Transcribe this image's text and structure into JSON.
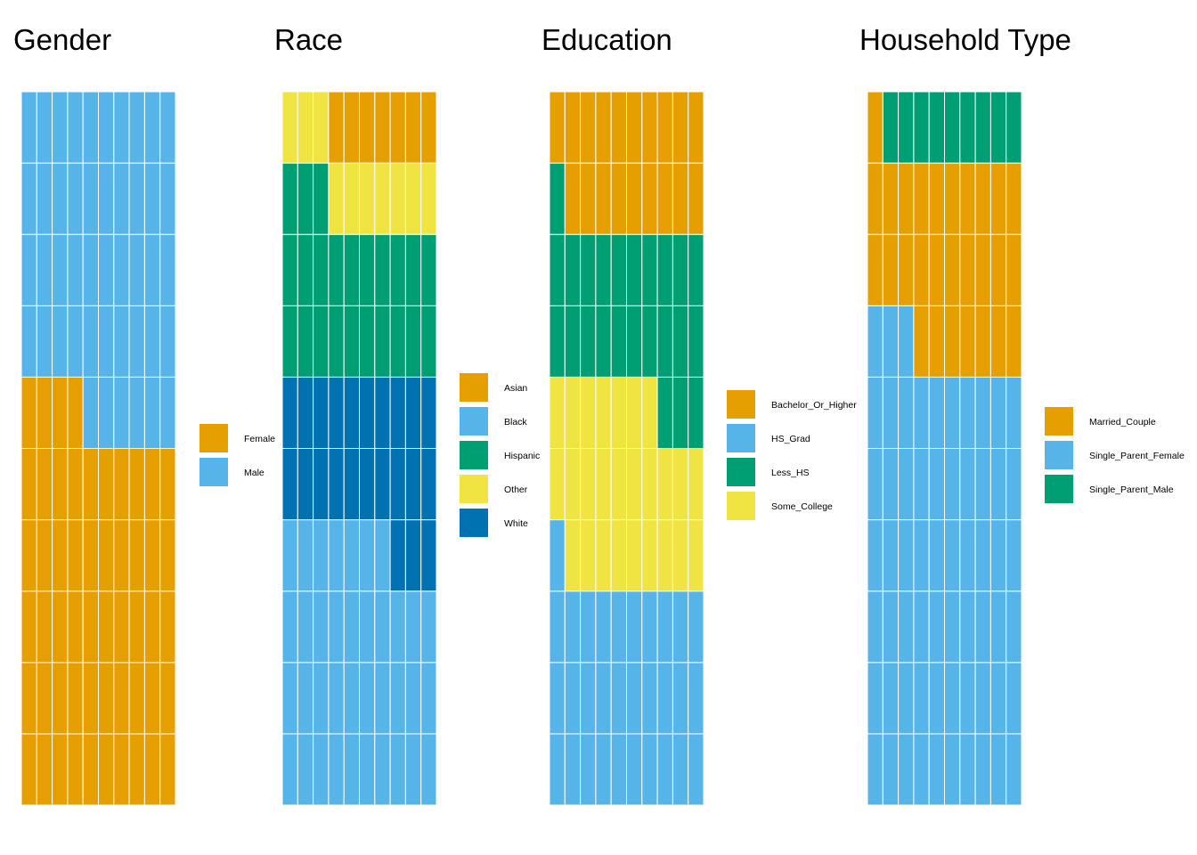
{
  "colors": {
    "orange": "#E69F00",
    "skyblue": "#56B4E9",
    "green": "#009E73",
    "yellow": "#F0E442",
    "blue": "#0072B2",
    "grid_line": "#ffffff"
  },
  "chart_data": [
    {
      "type": "waffle",
      "title": "Gender",
      "grid": {
        "rows": 10,
        "cols": 10,
        "total": 100,
        "fill_order": "bottom-left upward, row by row"
      },
      "categories": [
        "Female",
        "Male"
      ],
      "values": [
        54,
        46
      ],
      "series_colors": [
        "#E69F00",
        "#56B4E9"
      ],
      "legend": [
        {
          "label": "Female",
          "color": "#E69F00"
        },
        {
          "label": "Male",
          "color": "#56B4E9"
        }
      ]
    },
    {
      "type": "waffle",
      "title": "Race",
      "grid": {
        "rows": 10,
        "cols": 10,
        "total": 100,
        "fill_order": "bottom-left upward, row by row"
      },
      "categories": [
        "Black",
        "White",
        "Hispanic",
        "Other",
        "Asian"
      ],
      "values": [
        37,
        23,
        23,
        10,
        7
      ],
      "series_colors": [
        "#56B4E9",
        "#0072B2",
        "#009E73",
        "#F0E442",
        "#E69F00"
      ],
      "legend": [
        {
          "label": "Asian",
          "color": "#E69F00"
        },
        {
          "label": "Black",
          "color": "#56B4E9"
        },
        {
          "label": "Hispanic",
          "color": "#009E73"
        },
        {
          "label": "Other",
          "color": "#F0E442"
        },
        {
          "label": "White",
          "color": "#0072B2"
        }
      ]
    },
    {
      "type": "waffle",
      "title": "Education",
      "grid": {
        "rows": 10,
        "cols": 10,
        "total": 100,
        "fill_order": "bottom-left upward, row by row"
      },
      "categories": [
        "HS_Grad",
        "Some_College",
        "Less_HS",
        "Bachelor_Or_Higher"
      ],
      "values": [
        31,
        26,
        24,
        19
      ],
      "series_colors": [
        "#56B4E9",
        "#F0E442",
        "#009E73",
        "#E69F00"
      ],
      "legend": [
        {
          "label": "Bachelor_Or_Higher",
          "color": "#E69F00"
        },
        {
          "label": "HS_Grad",
          "color": "#56B4E9"
        },
        {
          "label": "Less_HS",
          "color": "#009E73"
        },
        {
          "label": "Some_College",
          "color": "#F0E442"
        }
      ]
    },
    {
      "type": "waffle",
      "title": "Household Type",
      "grid": {
        "rows": 10,
        "cols": 10,
        "total": 100,
        "fill_order": "bottom-left upward, row by row"
      },
      "categories": [
        "Single_Parent_Female",
        "Married_Couple",
        "Single_Parent_Male"
      ],
      "values": [
        63,
        28,
        9
      ],
      "series_colors": [
        "#56B4E9",
        "#E69F00",
        "#009E73"
      ],
      "legend": [
        {
          "label": "Married_Couple",
          "color": "#E69F00"
        },
        {
          "label": "Single_Parent_Female",
          "color": "#56B4E9"
        },
        {
          "label": "Single_Parent_Male",
          "color": "#009E73"
        }
      ]
    }
  ]
}
